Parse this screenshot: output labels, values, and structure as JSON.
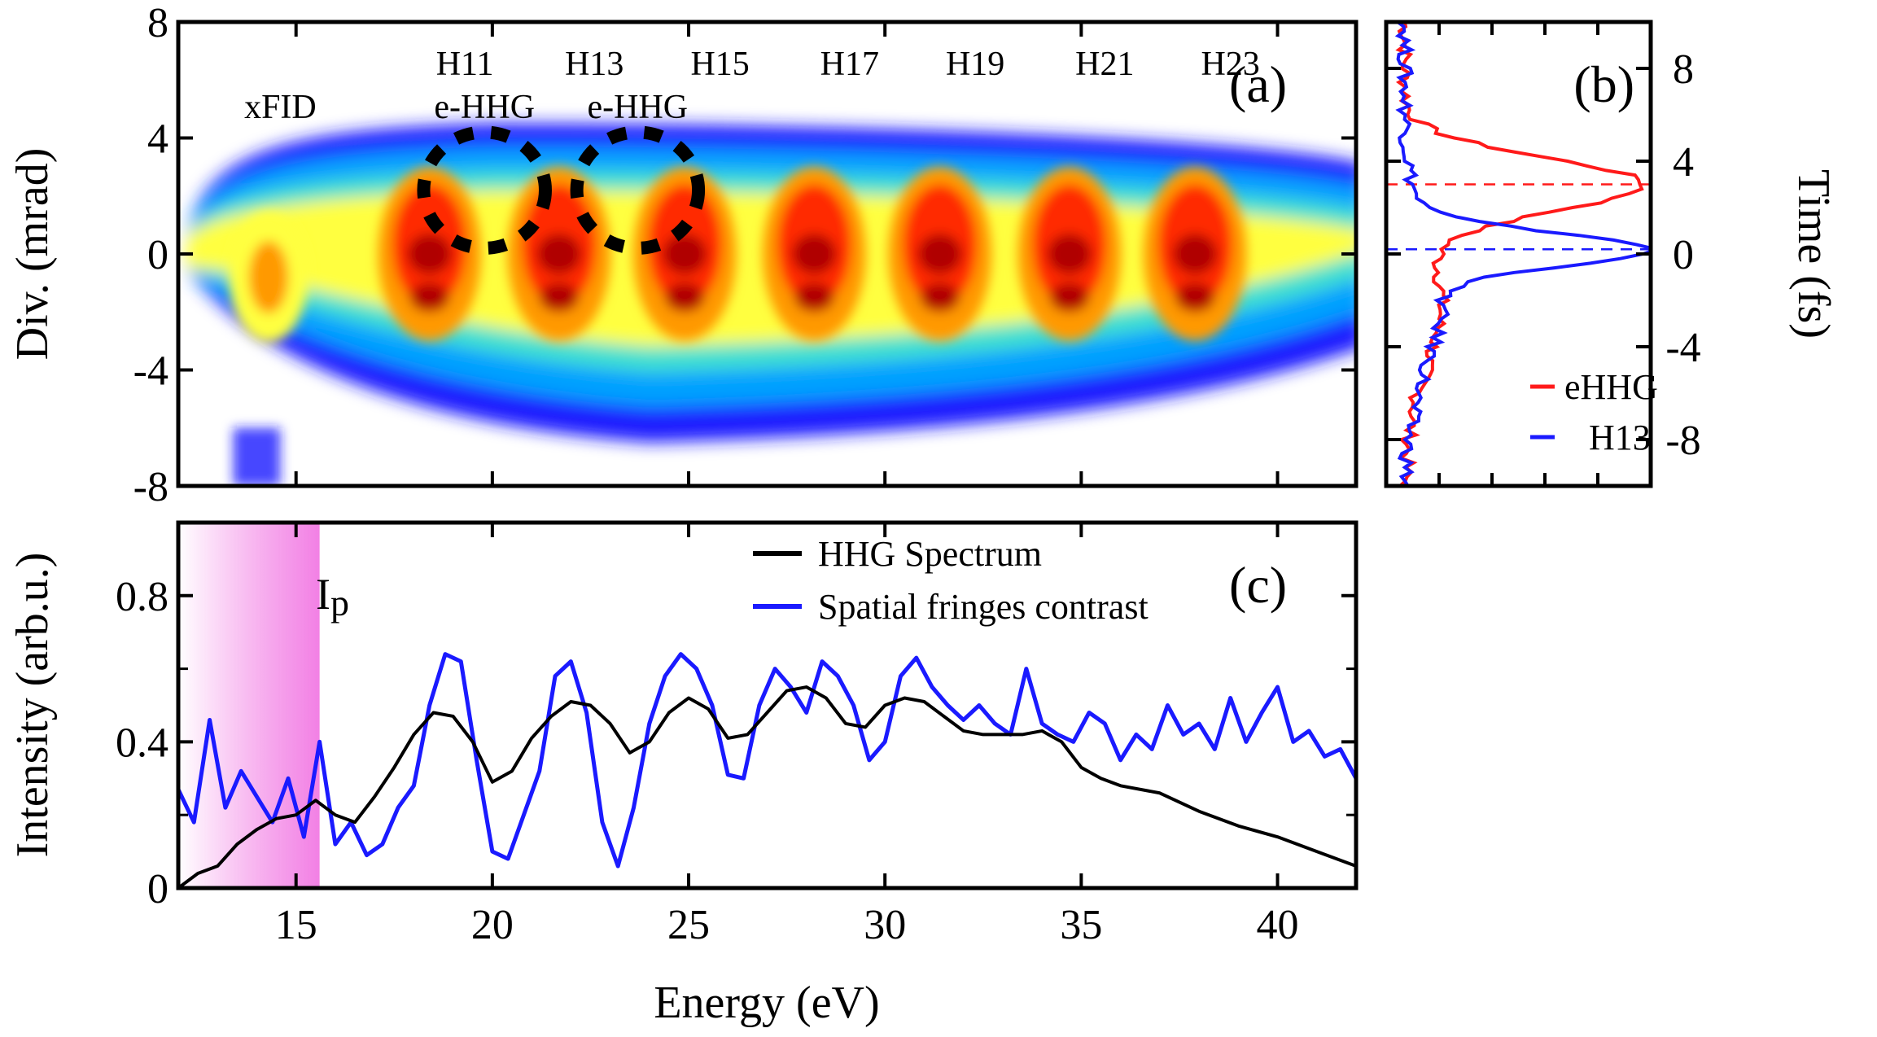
{
  "chart_data": [
    {
      "id": "a",
      "type": "heatmap",
      "panel_label": "(a)",
      "ylabel": "Div. (mrad)",
      "ylim": [
        -8,
        8
      ],
      "yticks": [
        "8",
        "4",
        "0",
        "-4",
        "-8"
      ],
      "xlim": [
        12,
        42
      ],
      "harmonics": [
        {
          "label": "H11",
          "energy": 19.3
        },
        {
          "label": "H13",
          "energy": 22.6
        },
        {
          "label": "H15",
          "energy": 25.8
        },
        {
          "label": "H17",
          "energy": 29.1
        },
        {
          "label": "H19",
          "energy": 32.3
        },
        {
          "label": "H21",
          "energy": 35.6
        },
        {
          "label": "H23",
          "energy": 38.8
        }
      ],
      "annotations": [
        {
          "label": "xFID",
          "energy": 14.6
        },
        {
          "label": "e-HHG",
          "energy": 19.8
        },
        {
          "label": "e-HHG",
          "energy": 23.7
        }
      ],
      "colormap": [
        "#1a1aff",
        "#00a0ff",
        "#40e0d0",
        "#ffff40",
        "#ff9900",
        "#ff2a00",
        "#b00000"
      ]
    },
    {
      "id": "b",
      "type": "line",
      "panel_label": "(b)",
      "ylabel": "Time (fs)",
      "ylim": [
        -10,
        10
      ],
      "yticks": [
        "8",
        "4",
        "0",
        "-4",
        "-8"
      ],
      "series": [
        {
          "name": "eHHG",
          "color": "#ff1a1a",
          "peak_time": 3.0
        },
        {
          "name": "H13",
          "color": "#1a1aff",
          "peak_time": 0.2
        }
      ]
    },
    {
      "id": "c",
      "type": "line",
      "panel_label": "(c)",
      "xlabel": "Energy (eV)",
      "ylabel": "Intensity (arb.u.)",
      "xlim": [
        12,
        42
      ],
      "ylim": [
        0,
        1
      ],
      "xticks": [
        "15",
        "20",
        "25",
        "30",
        "35",
        "40"
      ],
      "yticks": [
        "0",
        "0.4",
        "0.8"
      ],
      "ip_label": "I",
      "ip_sub": "p",
      "ip_energy": 15.6,
      "series": [
        {
          "name": "HHG Spectrum",
          "color": "#000000",
          "x": [
            12.0,
            12.5,
            13.0,
            13.5,
            14.0,
            14.5,
            15.0,
            15.5,
            16.0,
            16.5,
            17.0,
            17.5,
            18.0,
            18.5,
            19.0,
            19.5,
            20.0,
            20.5,
            21.0,
            21.5,
            22.0,
            22.5,
            23.0,
            23.5,
            24.0,
            24.5,
            25.0,
            25.5,
            26.0,
            26.5,
            27.0,
            27.5,
            28.0,
            28.5,
            29.0,
            29.5,
            30.0,
            30.5,
            31.0,
            31.5,
            32.0,
            32.5,
            33.0,
            33.5,
            34.0,
            34.5,
            35.0,
            35.5,
            36.0,
            37.0,
            38.0,
            39.0,
            40.0,
            41.0,
            42.0
          ],
          "y": [
            0.0,
            0.04,
            0.06,
            0.12,
            0.16,
            0.19,
            0.2,
            0.24,
            0.2,
            0.18,
            0.25,
            0.33,
            0.42,
            0.48,
            0.47,
            0.4,
            0.29,
            0.32,
            0.41,
            0.47,
            0.51,
            0.5,
            0.45,
            0.37,
            0.4,
            0.48,
            0.52,
            0.49,
            0.41,
            0.42,
            0.48,
            0.54,
            0.55,
            0.52,
            0.45,
            0.44,
            0.5,
            0.52,
            0.51,
            0.47,
            0.43,
            0.42,
            0.42,
            0.42,
            0.43,
            0.4,
            0.33,
            0.3,
            0.28,
            0.26,
            0.21,
            0.17,
            0.14,
            0.1,
            0.06
          ]
        },
        {
          "name": "Spatial fringes contrast",
          "color": "#1a1aff",
          "x": [
            12.0,
            12.4,
            12.8,
            13.2,
            13.6,
            14.0,
            14.4,
            14.8,
            15.2,
            15.6,
            16.0,
            16.4,
            16.8,
            17.2,
            17.6,
            18.0,
            18.4,
            18.8,
            19.2,
            19.6,
            20.0,
            20.4,
            20.8,
            21.2,
            21.6,
            22.0,
            22.4,
            22.8,
            23.2,
            23.6,
            24.0,
            24.4,
            24.8,
            25.2,
            25.6,
            26.0,
            26.4,
            26.8,
            27.2,
            27.6,
            28.0,
            28.4,
            28.8,
            29.2,
            29.6,
            30.0,
            30.4,
            30.8,
            31.2,
            31.6,
            32.0,
            32.4,
            32.8,
            33.2,
            33.6,
            34.0,
            34.4,
            34.8,
            35.2,
            35.6,
            36.0,
            36.4,
            36.8,
            37.2,
            37.6,
            38.0,
            38.4,
            38.8,
            39.2,
            39.6,
            40.0,
            40.4,
            40.8,
            41.2,
            41.6,
            42.0
          ],
          "y": [
            0.27,
            0.18,
            0.46,
            0.22,
            0.32,
            0.25,
            0.18,
            0.3,
            0.14,
            0.4,
            0.12,
            0.18,
            0.09,
            0.12,
            0.22,
            0.28,
            0.5,
            0.64,
            0.62,
            0.35,
            0.1,
            0.08,
            0.2,
            0.32,
            0.58,
            0.62,
            0.48,
            0.18,
            0.06,
            0.22,
            0.45,
            0.58,
            0.64,
            0.6,
            0.5,
            0.31,
            0.3,
            0.5,
            0.6,
            0.55,
            0.48,
            0.62,
            0.58,
            0.5,
            0.35,
            0.4,
            0.58,
            0.63,
            0.55,
            0.5,
            0.46,
            0.5,
            0.45,
            0.42,
            0.6,
            0.45,
            0.42,
            0.4,
            0.48,
            0.45,
            0.35,
            0.42,
            0.38,
            0.5,
            0.42,
            0.45,
            0.38,
            0.52,
            0.4,
            0.48,
            0.55,
            0.4,
            0.43,
            0.36,
            0.38,
            0.3
          ]
        }
      ]
    }
  ]
}
